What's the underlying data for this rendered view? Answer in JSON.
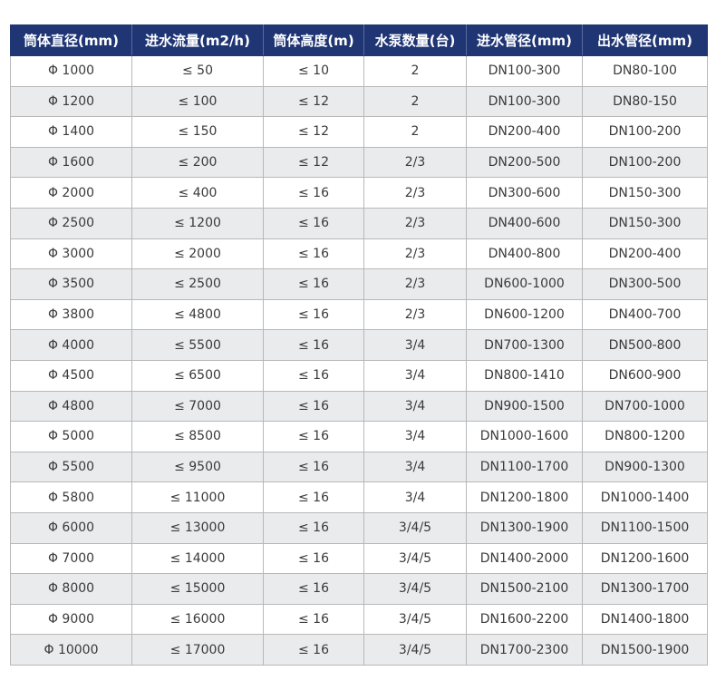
{
  "table": {
    "headers": [
      "筒体直径(mm)",
      "进水流量(m2/h)",
      "筒体高度(m)",
      "水泵数量(台)",
      "进水管径(mm)",
      "出水管径(mm)"
    ],
    "rows": [
      [
        "Φ 1000",
        "≤ 50",
        "≤ 10",
        "2",
        "DN100-300",
        "DN80-100"
      ],
      [
        "Φ 1200",
        "≤ 100",
        "≤ 12",
        "2",
        "DN100-300",
        "DN80-150"
      ],
      [
        "Φ 1400",
        "≤ 150",
        "≤ 12",
        "2",
        "DN200-400",
        "DN100-200"
      ],
      [
        "Φ 1600",
        "≤ 200",
        "≤ 12",
        "2/3",
        "DN200-500",
        "DN100-200"
      ],
      [
        "Φ 2000",
        "≤ 400",
        "≤ 16",
        "2/3",
        "DN300-600",
        "DN150-300"
      ],
      [
        "Φ 2500",
        "≤ 1200",
        "≤ 16",
        "2/3",
        "DN400-600",
        "DN150-300"
      ],
      [
        "Φ 3000",
        "≤ 2000",
        "≤ 16",
        "2/3",
        "DN400-800",
        "DN200-400"
      ],
      [
        "Φ 3500",
        "≤ 2500",
        "≤ 16",
        "2/3",
        "DN600-1000",
        "DN300-500"
      ],
      [
        "Φ 3800",
        "≤ 4800",
        "≤ 16",
        "2/3",
        "DN600-1200",
        "DN400-700"
      ],
      [
        "Φ 4000",
        "≤ 5500",
        "≤ 16",
        "3/4",
        "DN700-1300",
        "DN500-800"
      ],
      [
        "Φ 4500",
        "≤ 6500",
        "≤ 16",
        "3/4",
        "DN800-1410",
        "DN600-900"
      ],
      [
        "Φ 4800",
        "≤ 7000",
        "≤ 16",
        "3/4",
        "DN900-1500",
        "DN700-1000"
      ],
      [
        "Φ 5000",
        "≤ 8500",
        "≤ 16",
        "3/4",
        "DN1000-1600",
        "DN800-1200"
      ],
      [
        "Φ 5500",
        "≤ 9500",
        "≤ 16",
        "3/4",
        "DN1100-1700",
        "DN900-1300"
      ],
      [
        "Φ 5800",
        "≤ 11000",
        "≤ 16",
        "3/4",
        "DN1200-1800",
        "DN1000-1400"
      ],
      [
        "Φ 6000",
        "≤ 13000",
        "≤ 16",
        "3/4/5",
        "DN1300-1900",
        "DN1100-1500"
      ],
      [
        "Φ 7000",
        "≤ 14000",
        "≤ 16",
        "3/4/5",
        "DN1400-2000",
        "DN1200-1600"
      ],
      [
        "Φ 8000",
        "≤ 15000",
        "≤ 16",
        "3/4/5",
        "DN1500-2100",
        "DN1300-1700"
      ],
      [
        "Φ 9000",
        "≤ 16000",
        "≤ 16",
        "3/4/5",
        "DN1600-2200",
        "DN1400-1800"
      ],
      [
        "Φ 10000",
        "≤ 17000",
        "≤ 16",
        "3/4/5",
        "DN1700-2300",
        "DN1500-1900"
      ]
    ]
  },
  "colors": {
    "header_background": "#1f3574",
    "header_text": "#ffffff",
    "row_stripe": "#eaebed",
    "cell_text": "#3a3a3a",
    "border": "#b8b8b8"
  }
}
